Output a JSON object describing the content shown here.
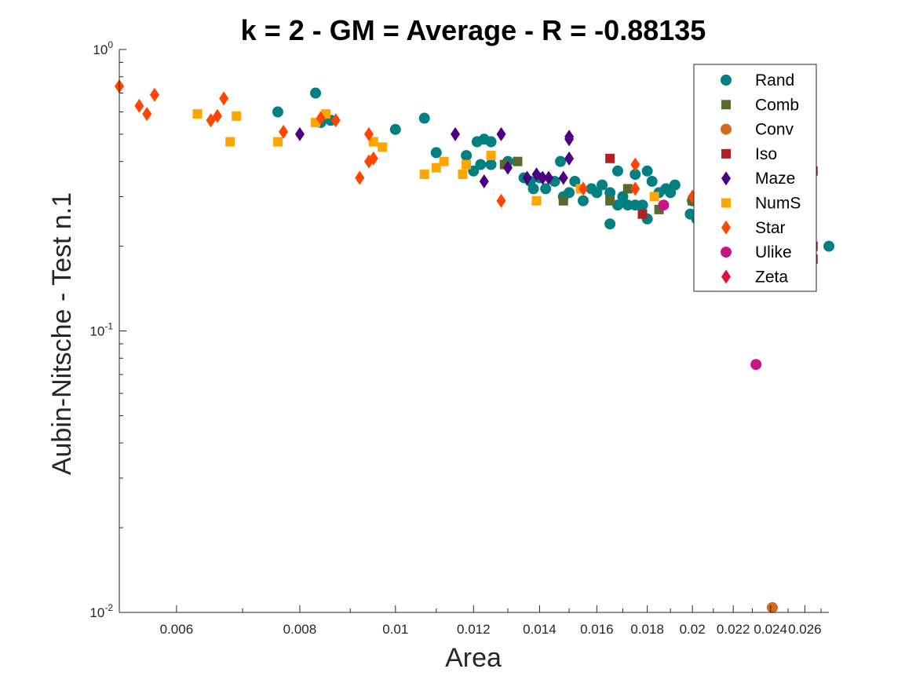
{
  "chart_data": {
    "type": "scatter",
    "title": "k = 2 - GM = Average - R = -0.88135",
    "xlabel": "Area",
    "ylabel": "Aubin-Nitsche - Test n.1",
    "xscale": "log",
    "yscale": "log",
    "xlim": [
      0.00525,
      0.0275
    ],
    "ylim": [
      0.01,
      1
    ],
    "x_ticks": [
      0.006,
      0.008,
      0.01,
      0.012,
      0.014,
      0.016,
      0.018,
      0.02,
      0.022,
      0.024,
      0.026
    ],
    "x_tick_labels": [
      "0.006",
      "0.008",
      "0.01",
      "0.012",
      "0.014",
      "0.016",
      "0.018",
      "0.02",
      "0.022",
      "0.024",
      "0.026"
    ],
    "y_tick_labels": [
      {
        "base": "10",
        "exp": "-2",
        "value": 0.01
      },
      {
        "base": "10",
        "exp": "-1",
        "value": 0.1
      },
      {
        "base": "10",
        "exp": "0",
        "value": 1
      }
    ],
    "grid": false,
    "legend_position": "top-right",
    "series": [
      {
        "name": "Rand",
        "marker": "circle",
        "color": "#008080",
        "points": [
          [
            0.0076,
            0.6
          ],
          [
            0.0083,
            0.7
          ],
          [
            0.0084,
            0.55
          ],
          [
            0.0086,
            0.56
          ],
          [
            0.01,
            0.52
          ],
          [
            0.0107,
            0.57
          ],
          [
            0.011,
            0.43
          ],
          [
            0.0118,
            0.42
          ],
          [
            0.012,
            0.37
          ],
          [
            0.0121,
            0.47
          ],
          [
            0.0122,
            0.39
          ],
          [
            0.0123,
            0.48
          ],
          [
            0.0125,
            0.47
          ],
          [
            0.0125,
            0.39
          ],
          [
            0.013,
            0.4
          ],
          [
            0.0135,
            0.35
          ],
          [
            0.0137,
            0.34
          ],
          [
            0.0138,
            0.32
          ],
          [
            0.014,
            0.35
          ],
          [
            0.0142,
            0.32
          ],
          [
            0.0145,
            0.34
          ],
          [
            0.0147,
            0.4
          ],
          [
            0.0148,
            0.3
          ],
          [
            0.015,
            0.31
          ],
          [
            0.0152,
            0.34
          ],
          [
            0.0155,
            0.29
          ],
          [
            0.0158,
            0.32
          ],
          [
            0.016,
            0.31
          ],
          [
            0.0162,
            0.33
          ],
          [
            0.0165,
            0.24
          ],
          [
            0.0165,
            0.31
          ],
          [
            0.0168,
            0.37
          ],
          [
            0.0168,
            0.28
          ],
          [
            0.017,
            0.3
          ],
          [
            0.0172,
            0.28
          ],
          [
            0.0175,
            0.36
          ],
          [
            0.0175,
            0.28
          ],
          [
            0.0178,
            0.28
          ],
          [
            0.018,
            0.25
          ],
          [
            0.018,
            0.37
          ],
          [
            0.0182,
            0.34
          ],
          [
            0.0185,
            0.31
          ],
          [
            0.0188,
            0.32
          ],
          [
            0.019,
            0.31
          ],
          [
            0.0192,
            0.33
          ],
          [
            0.0199,
            0.26
          ],
          [
            0.02,
            0.29
          ],
          [
            0.0202,
            0.25
          ],
          [
            0.0205,
            0.3
          ],
          [
            0.0206,
            0.28
          ],
          [
            0.0275,
            0.2
          ]
        ]
      },
      {
        "name": "Comb",
        "marker": "square",
        "color": "#556b2f",
        "points": [
          [
            0.0129,
            0.39
          ],
          [
            0.0133,
            0.4
          ],
          [
            0.0148,
            0.29
          ],
          [
            0.0165,
            0.29
          ],
          [
            0.0172,
            0.32
          ],
          [
            0.0185,
            0.27
          ],
          [
            0.02,
            0.29
          ],
          [
            0.0205,
            0.27
          ]
        ]
      },
      {
        "name": "Conv",
        "marker": "circle",
        "color": "#d2691e",
        "points": [
          [
            0.0241,
            0.0104
          ]
        ]
      },
      {
        "name": "Iso",
        "marker": "square",
        "color": "#b22222",
        "points": [
          [
            0.0165,
            0.41
          ],
          [
            0.0178,
            0.26
          ],
          [
            0.0203,
            0.23
          ],
          [
            0.0265,
            0.37
          ],
          [
            0.0265,
            0.2
          ],
          [
            0.0265,
            0.18
          ]
        ]
      },
      {
        "name": "Maze",
        "marker": "diamond",
        "color": "#4b0082",
        "points": [
          [
            0.008,
            0.5
          ],
          [
            0.0115,
            0.5
          ],
          [
            0.0123,
            0.34
          ],
          [
            0.0128,
            0.5
          ],
          [
            0.013,
            0.38
          ],
          [
            0.0136,
            0.35
          ],
          [
            0.0139,
            0.36
          ],
          [
            0.0141,
            0.35
          ],
          [
            0.0143,
            0.35
          ],
          [
            0.0148,
            0.35
          ],
          [
            0.015,
            0.49
          ],
          [
            0.015,
            0.48
          ],
          [
            0.015,
            0.41
          ]
        ]
      },
      {
        "name": "NumS",
        "marker": "square",
        "color": "#ffa500",
        "points": [
          [
            0.0063,
            0.59
          ],
          [
            0.0068,
            0.47
          ],
          [
            0.0069,
            0.58
          ],
          [
            0.0076,
            0.47
          ],
          [
            0.0083,
            0.55
          ],
          [
            0.0085,
            0.59
          ],
          [
            0.0095,
            0.47
          ],
          [
            0.0097,
            0.45
          ],
          [
            0.0107,
            0.36
          ],
          [
            0.011,
            0.38
          ],
          [
            0.0112,
            0.4
          ],
          [
            0.0117,
            0.36
          ],
          [
            0.0118,
            0.39
          ],
          [
            0.0125,
            0.42
          ],
          [
            0.0139,
            0.29
          ],
          [
            0.0154,
            0.32
          ],
          [
            0.0183,
            0.3
          ],
          [
            0.0204,
            0.29
          ]
        ]
      },
      {
        "name": "Star",
        "marker": "diamond",
        "color": "#ff4500",
        "points": [
          [
            0.00525,
            0.74
          ],
          [
            0.0055,
            0.63
          ],
          [
            0.0056,
            0.59
          ],
          [
            0.0057,
            0.69
          ],
          [
            0.0065,
            0.56
          ],
          [
            0.0066,
            0.58
          ],
          [
            0.0067,
            0.67
          ],
          [
            0.0077,
            0.51
          ],
          [
            0.0084,
            0.57
          ],
          [
            0.0087,
            0.56
          ],
          [
            0.0092,
            0.35
          ],
          [
            0.0094,
            0.5
          ],
          [
            0.0094,
            0.4
          ],
          [
            0.0095,
            0.41
          ],
          [
            0.0128,
            0.29
          ],
          [
            0.0155,
            0.32
          ],
          [
            0.0175,
            0.39
          ],
          [
            0.0175,
            0.32
          ],
          [
            0.02,
            0.3
          ]
        ]
      },
      {
        "name": "Ulike",
        "marker": "circle",
        "color": "#c71585",
        "points": [
          [
            0.0187,
            0.28
          ],
          [
            0.0232,
            0.076
          ]
        ]
      },
      {
        "name": "Zeta",
        "marker": "diamond",
        "color": "#dc143c",
        "points": []
      }
    ]
  }
}
